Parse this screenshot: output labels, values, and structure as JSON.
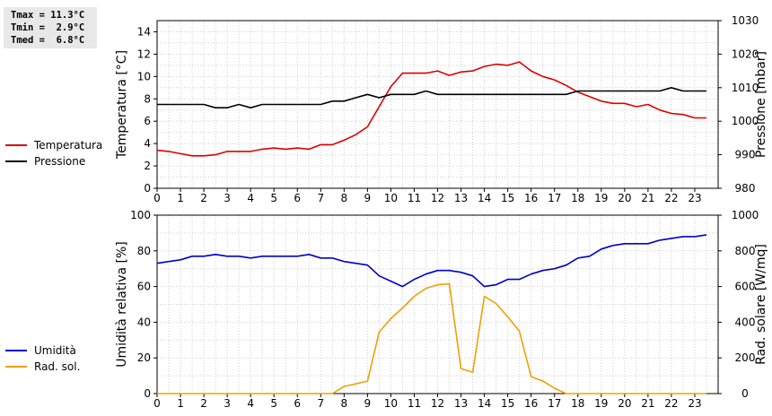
{
  "stats": {
    "tmax": "Tmax = 11.3°C",
    "tmin": "Tmin =  2.9°C",
    "tmed": "Tmed =  6.8°C"
  },
  "chart_data": [
    {
      "type": "line",
      "ylabel": "Temperatura [°C]",
      "y2label": "Pressione [mbar]",
      "xlim": [
        0,
        24
      ],
      "xticks": [
        0,
        1,
        2,
        3,
        4,
        5,
        6,
        7,
        8,
        9,
        10,
        11,
        12,
        13,
        14,
        15,
        16,
        17,
        18,
        19,
        20,
        21,
        22,
        23
      ],
      "ylim": [
        0,
        15
      ],
      "yticks": [
        0,
        2,
        4,
        6,
        8,
        10,
        12,
        14
      ],
      "y2lim": [
        980,
        1030
      ],
      "y2ticks": [
        980,
        990,
        1000,
        1010,
        1020,
        1030
      ],
      "grid": true,
      "legend_position": "left",
      "series": [
        {
          "name": "Temperatura",
          "axis": "left",
          "color": "#dd0000",
          "x": [
            0,
            0.5,
            1,
            1.5,
            2,
            2.5,
            3,
            3.5,
            4,
            4.5,
            5,
            5.5,
            6,
            6.5,
            7,
            7.5,
            8,
            8.5,
            9,
            9.5,
            10,
            10.5,
            11,
            11.5,
            12,
            12.5,
            13,
            13.5,
            14,
            14.5,
            15,
            15.5,
            16,
            16.5,
            17,
            17.5,
            18,
            18.5,
            19,
            19.5,
            20,
            20.5,
            21,
            21.5,
            22,
            22.5,
            23,
            23.5
          ],
          "values": [
            3.4,
            3.3,
            3.1,
            2.9,
            2.9,
            3.0,
            3.3,
            3.3,
            3.3,
            3.5,
            3.6,
            3.5,
            3.6,
            3.5,
            3.9,
            3.9,
            4.3,
            4.8,
            5.5,
            7.3,
            9.1,
            10.3,
            10.3,
            10.3,
            10.5,
            10.1,
            10.4,
            10.5,
            10.9,
            11.1,
            11.0,
            11.3,
            10.5,
            10.0,
            9.7,
            9.2,
            8.6,
            8.2,
            7.8,
            7.6,
            7.6,
            7.3,
            7.5,
            7.0,
            6.7,
            6.6,
            6.3,
            6.3
          ]
        },
        {
          "name": "Pressione",
          "axis": "right",
          "color": "#000000",
          "x": [
            0,
            0.5,
            1,
            1.5,
            2,
            2.5,
            3,
            3.5,
            4,
            4.5,
            5,
            5.5,
            6,
            6.5,
            7,
            7.5,
            8,
            8.5,
            9,
            9.5,
            10,
            10.5,
            11,
            11.5,
            12,
            12.5,
            13,
            13.5,
            14,
            14.5,
            15,
            15.5,
            16,
            16.5,
            17,
            17.5,
            18,
            18.5,
            19,
            19.5,
            20,
            20.5,
            21,
            21.5,
            22,
            22.5,
            23,
            23.5
          ],
          "values": [
            1005,
            1005,
            1005,
            1005,
            1005,
            1004,
            1004,
            1005,
            1004,
            1005,
            1005,
            1005,
            1005,
            1005,
            1005,
            1006,
            1006,
            1007,
            1008,
            1007,
            1008,
            1008,
            1008,
            1009,
            1008,
            1008,
            1008,
            1008,
            1008,
            1008,
            1008,
            1008,
            1008,
            1008,
            1008,
            1008,
            1009,
            1009,
            1009,
            1009,
            1009,
            1009,
            1009,
            1009,
            1010,
            1009,
            1009,
            1009
          ]
        }
      ]
    },
    {
      "type": "line",
      "ylabel": "Umidità relativa [%]",
      "y2label": "Rad. solare [W/mq]",
      "xlim": [
        0,
        24
      ],
      "xticks": [
        0,
        1,
        2,
        3,
        4,
        5,
        6,
        7,
        8,
        9,
        10,
        11,
        12,
        13,
        14,
        15,
        16,
        17,
        18,
        19,
        20,
        21,
        22,
        23
      ],
      "ylim": [
        0,
        100
      ],
      "yticks": [
        0,
        20,
        40,
        60,
        80,
        100
      ],
      "y2lim": [
        0,
        1000
      ],
      "y2ticks": [
        0,
        200,
        400,
        600,
        800,
        1000
      ],
      "grid": true,
      "legend_position": "left",
      "series": [
        {
          "name": "Umidità",
          "axis": "left",
          "color": "#0000cc",
          "x": [
            0,
            0.5,
            1,
            1.5,
            2,
            2.5,
            3,
            3.5,
            4,
            4.5,
            5,
            5.5,
            6,
            6.5,
            7,
            7.5,
            8,
            8.5,
            9,
            9.5,
            10,
            10.5,
            11,
            11.5,
            12,
            12.5,
            13,
            13.5,
            14,
            14.5,
            15,
            15.5,
            16,
            16.5,
            17,
            17.5,
            18,
            18.5,
            19,
            19.5,
            20,
            20.5,
            21,
            21.5,
            22,
            22.5,
            23,
            23.5
          ],
          "values": [
            73,
            74,
            75,
            77,
            77,
            78,
            77,
            77,
            76,
            77,
            77,
            77,
            77,
            78,
            76,
            76,
            74,
            73,
            72,
            66,
            63,
            60,
            64,
            67,
            69,
            69,
            68,
            66,
            60,
            61,
            64,
            64,
            67,
            69,
            70,
            72,
            76,
            77,
            81,
            83,
            84,
            84,
            84,
            86,
            87,
            88,
            88,
            89
          ]
        },
        {
          "name": "Rad. sol.",
          "axis": "right",
          "color": "#f0a000",
          "x": [
            0,
            0.5,
            1,
            1.5,
            2,
            2.5,
            3,
            3.5,
            4,
            4.5,
            5,
            5.5,
            6,
            6.5,
            7,
            7.5,
            8,
            8.5,
            9,
            9.5,
            10,
            10.5,
            11,
            11.5,
            12,
            12.5,
            13,
            13.5,
            14,
            14.5,
            15,
            15.5,
            16,
            16.5,
            17,
            17.5,
            18,
            18.5,
            19,
            19.5,
            20,
            20.5,
            21,
            21.5,
            22,
            22.5,
            23,
            23.5
          ],
          "values": [
            0,
            0,
            0,
            0,
            0,
            0,
            0,
            0,
            0,
            0,
            0,
            0,
            0,
            0,
            0,
            0,
            40,
            55,
            70,
            345,
            420,
            480,
            545,
            590,
            610,
            615,
            140,
            120,
            545,
            505,
            430,
            350,
            95,
            70,
            30,
            0,
            0,
            0,
            0,
            0,
            0,
            0,
            0,
            0,
            0,
            0,
            0,
            0
          ]
        }
      ]
    }
  ]
}
